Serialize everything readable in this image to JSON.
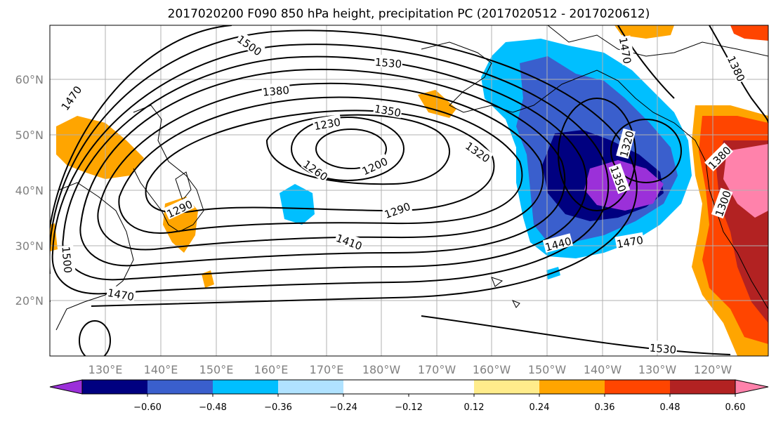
{
  "title": "2017020200 F090 850 hPa height, precipitation PC (2017020512 - 2017020612)",
  "map": {
    "lon_ticks": [
      "130°E",
      "140°E",
      "150°E",
      "160°E",
      "170°E",
      "180°W",
      "170°W",
      "160°W",
      "150°W",
      "140°W",
      "130°W",
      "120°W"
    ],
    "lat_ticks": [
      "60°N",
      "50°N",
      "40°N",
      "30°N",
      "20°N"
    ],
    "contour_labels": [
      "1500",
      "1530",
      "1380",
      "1470",
      "1350",
      "1230",
      "1320",
      "1200",
      "1260",
      "1320",
      "1350",
      "1380",
      "1290",
      "1290",
      "1300",
      "1410",
      "1440",
      "1470",
      "1500",
      "1470",
      "1530",
      "1470",
      "1380"
    ]
  },
  "colorbar": {
    "colors": [
      "#9b30d9",
      "#000080",
      "#3a5fcd",
      "#00bfff",
      "#b0e2ff",
      "#ffffff",
      "#ffffff",
      "#ffec8b",
      "#ffa500",
      "#ff4500",
      "#b22222",
      "#ff82ab"
    ],
    "tick_labels": [
      "−0.60",
      "−0.48",
      "−0.36",
      "−0.24",
      "−0.12",
      "0.12",
      "0.24",
      "0.36",
      "0.48",
      "0.60"
    ]
  }
}
